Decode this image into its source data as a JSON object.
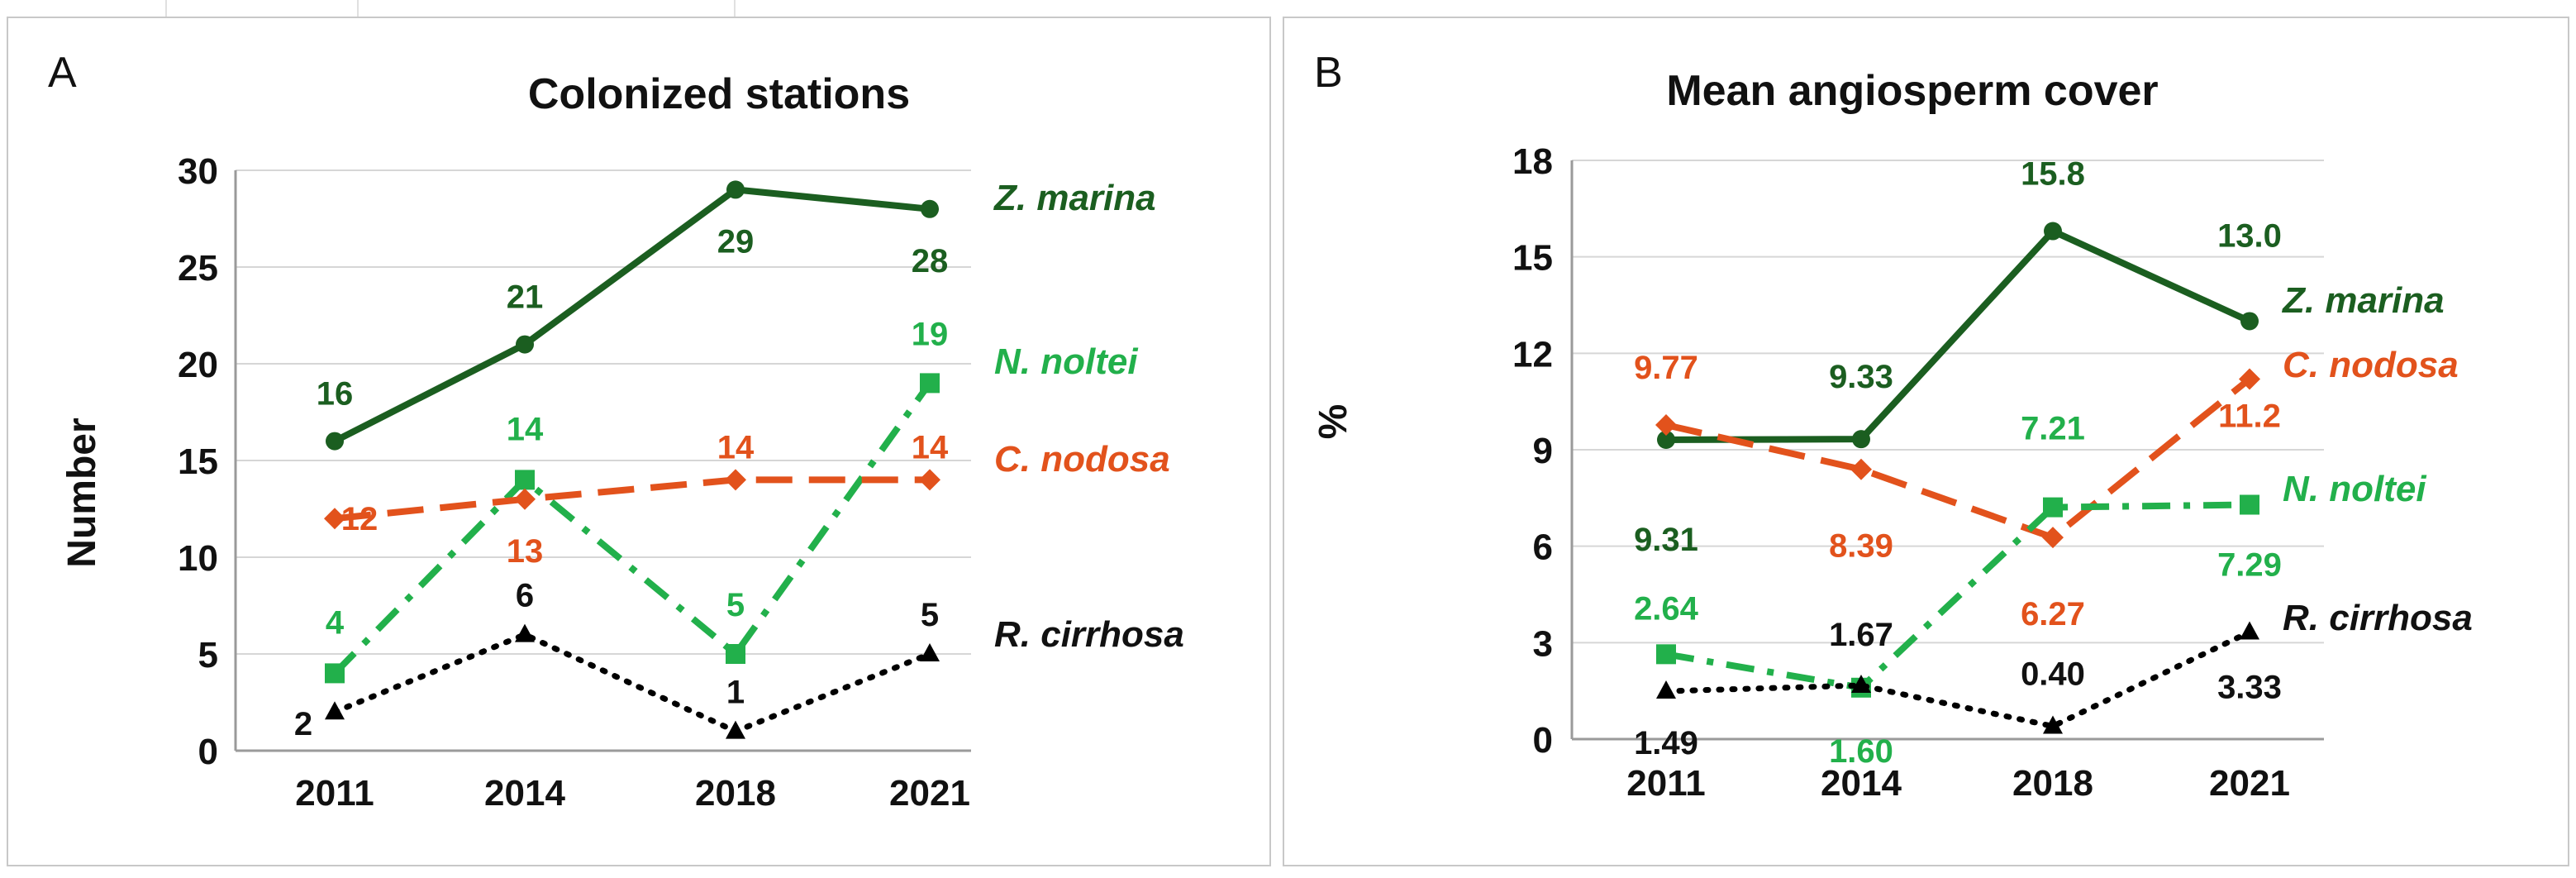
{
  "panels": [
    {
      "letter": "A",
      "chart_data": {
        "type": "line",
        "title": "Colonized stations",
        "xlabel": "",
        "ylabel": "Number",
        "categories": [
          "2011",
          "2014",
          "2018",
          "2021"
        ],
        "ylim": [
          0,
          30
        ],
        "yticks": [
          "0",
          "5",
          "10",
          "15",
          "20",
          "25",
          "30"
        ],
        "grid": true,
        "series": [
          {
            "name": "Z. marina",
            "color": "#1b5e20",
            "style": "solid",
            "marker": "circle",
            "values": [
              16,
              21,
              29,
              28
            ],
            "labels": [
              "16",
              "21",
              "29",
              "28"
            ]
          },
          {
            "name": "N. noltei",
            "color": "#22b04b",
            "style": "dashdot",
            "marker": "square",
            "values": [
              4,
              14,
              5,
              19
            ],
            "labels": [
              "4",
              "14",
              "5",
              "19"
            ]
          },
          {
            "name": "C. nodosa",
            "color": "#e2521c",
            "style": "dashed",
            "marker": "diamond",
            "values": [
              12,
              13,
              14,
              14
            ],
            "labels": [
              "12",
              "13",
              "14",
              "14"
            ]
          },
          {
            "name": "R. cirrhosa",
            "color": "#000000",
            "style": "dotted",
            "marker": "triangle",
            "values": [
              2,
              6,
              1,
              5
            ],
            "labels": [
              "2",
              "6",
              "1",
              "5"
            ]
          }
        ]
      }
    },
    {
      "letter": "B",
      "chart_data": {
        "type": "line",
        "title": "Mean angiosperm cover",
        "xlabel": "",
        "ylabel": "%",
        "categories": [
          "2011",
          "2014",
          "2018",
          "2021"
        ],
        "ylim": [
          0,
          18
        ],
        "yticks": [
          "0",
          "3",
          "6",
          "9",
          "12",
          "15",
          "18"
        ],
        "grid": true,
        "series": [
          {
            "name": "Z. marina",
            "color": "#1b5e20",
            "style": "solid",
            "marker": "circle",
            "values": [
              9.31,
              9.33,
              15.8,
              13.0
            ],
            "labels": [
              "9.31",
              "9.33",
              "15.8",
              "13.0"
            ]
          },
          {
            "name": "C. nodosa",
            "color": "#e2521c",
            "style": "dashed",
            "marker": "diamond",
            "values": [
              9.77,
              8.39,
              6.27,
              11.2
            ],
            "labels": [
              "9.77",
              "8.39",
              "6.27",
              "11.2"
            ]
          },
          {
            "name": "N. noltei",
            "color": "#22b04b",
            "style": "dashdot",
            "marker": "square",
            "values": [
              2.64,
              1.6,
              7.21,
              7.29
            ],
            "labels": [
              "2.64",
              "1.60",
              "7.21",
              "7.29"
            ]
          },
          {
            "name": "R. cirrhosa",
            "color": "#000000",
            "style": "dotted",
            "marker": "triangle",
            "values": [
              1.49,
              1.67,
              0.4,
              3.33
            ],
            "labels": [
              "1.49",
              "1.67",
              "0.40",
              "3.33"
            ]
          }
        ]
      }
    }
  ]
}
